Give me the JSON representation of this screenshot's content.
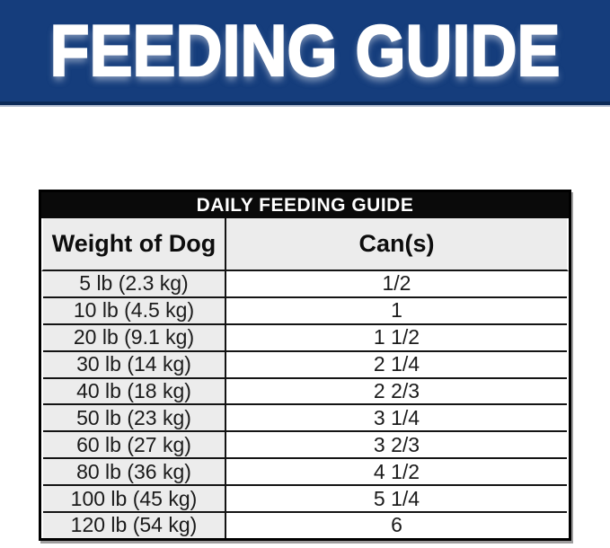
{
  "banner": {
    "title": "FEEDING GUIDE",
    "bg_color": "#153d7c",
    "border_color": "#0c2a58",
    "text_color": "#ffffff"
  },
  "table": {
    "title": "DAILY FEEDING GUIDE",
    "title_bg": "#0a0a0a",
    "title_color": "#ffffff",
    "header_bg": "#ececec",
    "weight_col_bg": "#ececec",
    "border_color": "#000000",
    "header": {
      "weight": "Weight of Dog",
      "cans": "Can(s)"
    },
    "rows": [
      {
        "weight": "5 lb (2.3 kg)",
        "cans": "1/2"
      },
      {
        "weight": "10 lb (4.5 kg)",
        "cans": "1"
      },
      {
        "weight": "20 lb (9.1 kg)",
        "cans": "1 1/2"
      },
      {
        "weight": "30 lb (14 kg)",
        "cans": "2 1/4"
      },
      {
        "weight": "40 lb (18 kg)",
        "cans": "2 2/3"
      },
      {
        "weight": "50 lb (23 kg)",
        "cans": "3 1/4"
      },
      {
        "weight": "60 lb (27 kg)",
        "cans": "3 2/3"
      },
      {
        "weight": "80 lb (36 kg)",
        "cans": "4 1/2"
      },
      {
        "weight": "100 lb (45 kg)",
        "cans": "5 1/4"
      },
      {
        "weight": "120 lb (54 kg)",
        "cans": "6"
      }
    ]
  },
  "chart_data": {
    "type": "table",
    "title": "DAILY FEEDING GUIDE",
    "columns": [
      "Weight of Dog",
      "Can(s)"
    ],
    "rows": [
      [
        "5 lb (2.3 kg)",
        "1/2"
      ],
      [
        "10 lb (4.5 kg)",
        "1"
      ],
      [
        "20 lb (9.1 kg)",
        "1 1/2"
      ],
      [
        "30 lb (14 kg)",
        "2 1/4"
      ],
      [
        "40 lb (18 kg)",
        "2 2/3"
      ],
      [
        "50 lb (23 kg)",
        "3 1/4"
      ],
      [
        "60 lb (27 kg)",
        "3 2/3"
      ],
      [
        "80 lb (36 kg)",
        "4 1/2"
      ],
      [
        "100 lb (45 kg)",
        "5 1/4"
      ],
      [
        "120 lb (54 kg)",
        "6"
      ]
    ]
  }
}
